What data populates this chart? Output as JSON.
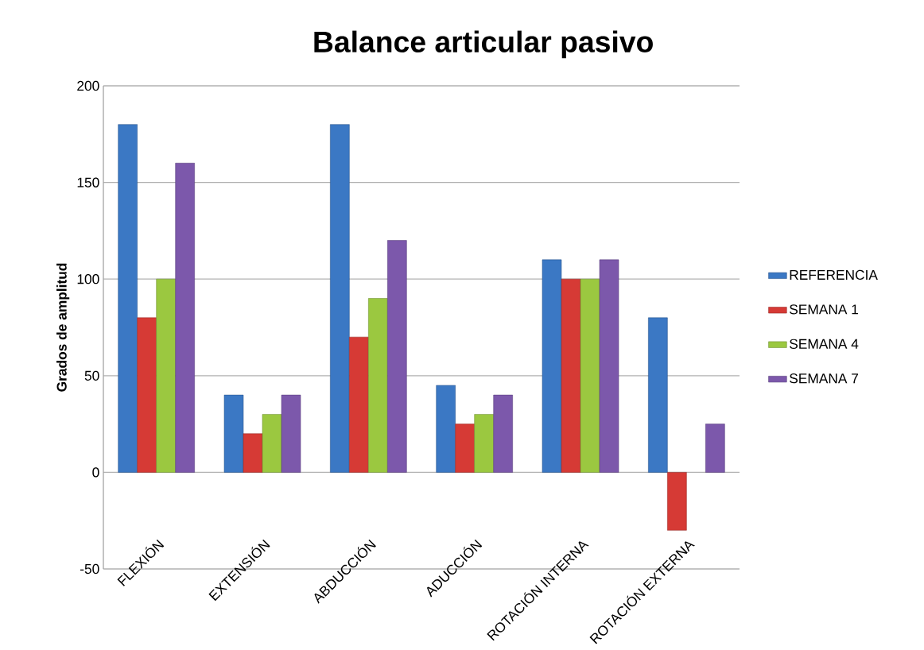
{
  "chart_data": {
    "type": "bar",
    "title": "Balance articular pasivo",
    "ylabel": "Grados de amplitud",
    "categories": [
      "FLEXIÓN",
      "EXTENSIÓN",
      "ABDUCCIÓN",
      "ADUCCIÓN",
      "ROTACIÓN INTERNA",
      "ROTACIÓN EXTERNA"
    ],
    "series": [
      {
        "name": "REFERENCIA",
        "color": "#3b78c4",
        "values": [
          180,
          40,
          180,
          45,
          110,
          80
        ]
      },
      {
        "name": "SEMANA 1",
        "color": "#d63a35",
        "values": [
          80,
          20,
          70,
          25,
          100,
          -30
        ]
      },
      {
        "name": "SEMANA 4",
        "color": "#9bc840",
        "values": [
          100,
          30,
          90,
          30,
          100,
          null
        ]
      },
      {
        "name": "SEMANA 7",
        "color": "#7c58ab",
        "values": [
          160,
          40,
          120,
          40,
          110,
          25
        ]
      }
    ],
    "ylim": [
      -50,
      200
    ],
    "yticks": [
      -50,
      0,
      50,
      100,
      150,
      200
    ],
    "grid": "y",
    "legend": "right"
  }
}
